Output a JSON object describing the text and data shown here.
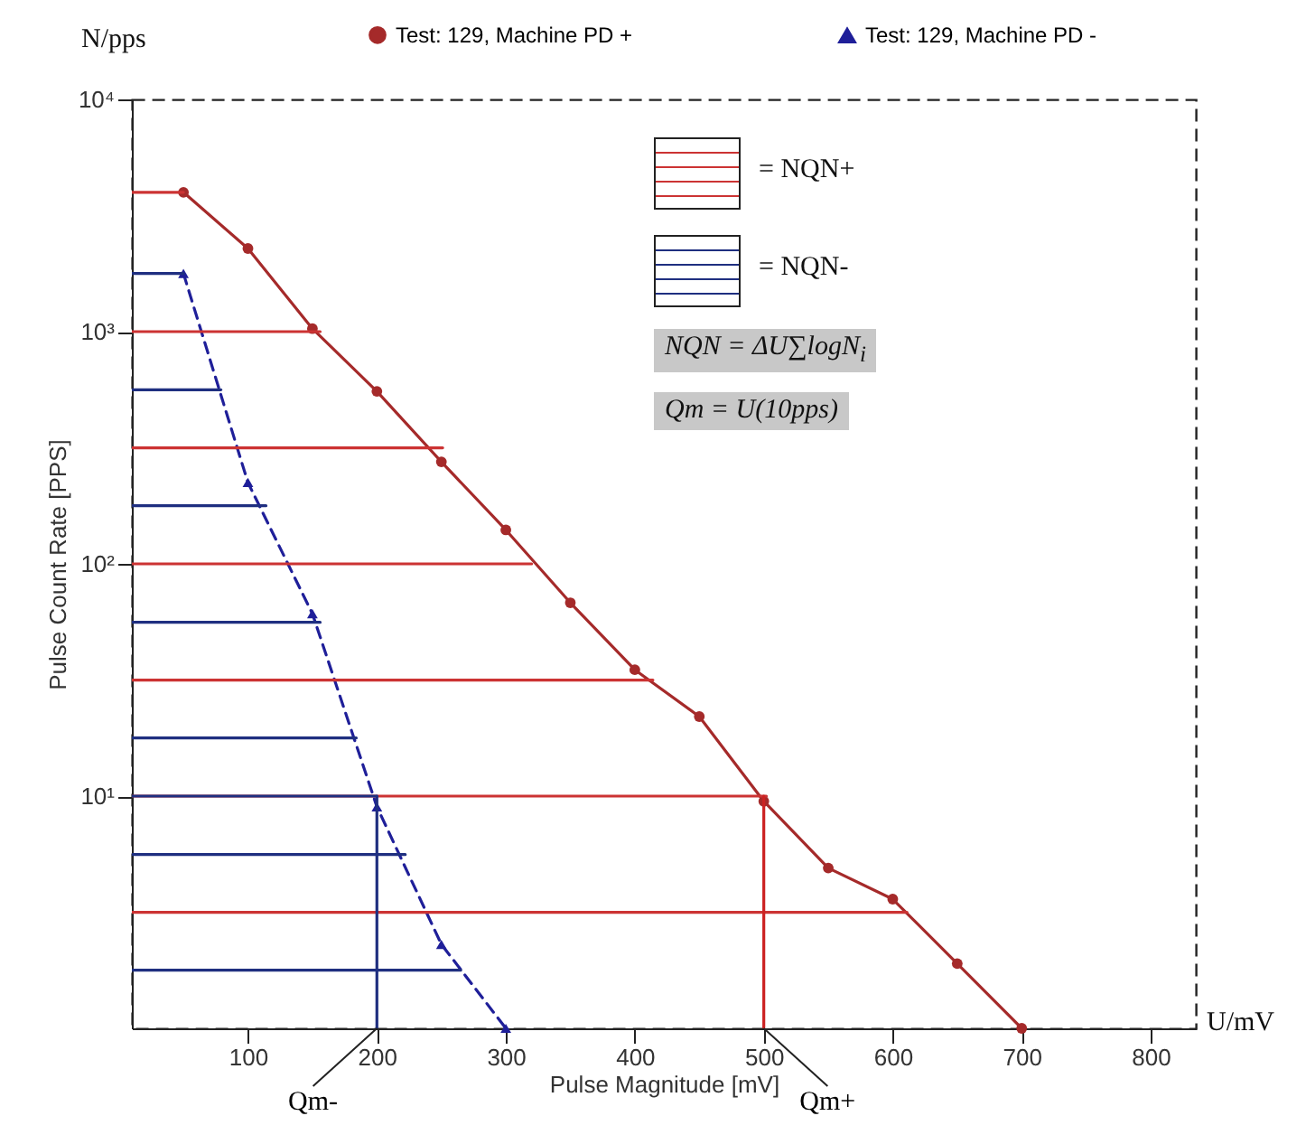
{
  "chart_data": {
    "type": "line",
    "xlabel": "Pulse Magnitude [mV]",
    "ylabel": "Pulse Count Rate [PPS]",
    "xlim": [
      10,
      835
    ],
    "ylim": [
      1,
      10000
    ],
    "xticks": [
      100,
      200,
      300,
      400,
      500,
      600,
      700,
      800
    ],
    "yticks": [
      {
        "value": 10,
        "label": "10¹"
      },
      {
        "value": 100,
        "label": "10²"
      },
      {
        "value": 1000,
        "label": "10³"
      },
      {
        "value": 10000,
        "label": "10⁴"
      }
    ],
    "log": "y",
    "legend": "top",
    "annotations": [
      "N/pps",
      "U/mV",
      "= NQN+",
      "= NQN-",
      "NQN = ΔU∑logN$_{i}$",
      "Qm = U(10pps)",
      {
        "text": "Qm-",
        "x": 200,
        "y": 1
      },
      {
        "text": "Qm+",
        "x": 500,
        "y": 1
      }
    ],
    "series": [
      {
        "name": "Test: 129, Machine PD +",
        "color": "#a52a2a",
        "marker": "circle",
        "line_style": "solid",
        "x": [
          50,
          100,
          150,
          200,
          250,
          300,
          350,
          400,
          450,
          500,
          550,
          600,
          650,
          700
        ],
        "values": [
          3980,
          2280,
          1030,
          553,
          275,
          140,
          68,
          35,
          22,
          9.5,
          4.9,
          3.6,
          1.9,
          1
        ]
      },
      {
        "name": "Test: 129, Machine PD -",
        "color": "#1f1f99",
        "marker": "triangle",
        "line_style": "dashed",
        "x": [
          50,
          100,
          150,
          200,
          250,
          300
        ],
        "values": [
          1780,
          224,
          61,
          9,
          2.3,
          1
        ]
      },
      {
        "color": "#cc3333",
        "marker": "none",
        "line_style": "solid",
        "x": [
          10,
          50
        ],
        "values": [
          3980,
          3980
        ]
      },
      {
        "color": "#cc3333",
        "marker": "none",
        "line_style": "solid",
        "x": [
          10,
          156
        ],
        "values": [
          1000,
          1000
        ]
      },
      {
        "color": "#cc3333",
        "marker": "none",
        "line_style": "solid",
        "x": [
          10,
          251
        ],
        "values": [
          316,
          316
        ]
      },
      {
        "color": "#cc3333",
        "marker": "none",
        "line_style": "solid",
        "x": [
          10,
          320
        ],
        "values": [
          100,
          100
        ]
      },
      {
        "color": "#cc3333",
        "marker": "none",
        "line_style": "solid",
        "x": [
          10,
          414
        ],
        "values": [
          31.6,
          31.6
        ]
      },
      {
        "color": "#cc3333",
        "marker": "none",
        "line_style": "solid",
        "x": [
          10,
          502
        ],
        "values": [
          10,
          10
        ]
      },
      {
        "color": "#cc3333",
        "marker": "none",
        "line_style": "solid",
        "x": [
          10,
          611
        ],
        "values": [
          3.16,
          3.16
        ]
      },
      {
        "color": "#cc2222",
        "marker": "none",
        "line_style": "solid",
        "x": [
          500,
          500
        ],
        "values": [
          1,
          10
        ]
      },
      {
        "color": "#1f2f80",
        "marker": "none",
        "line_style": "solid",
        "x": [
          10,
          50
        ],
        "values": [
          1780,
          1780
        ]
      },
      {
        "color": "#1f2f80",
        "marker": "none",
        "line_style": "solid",
        "x": [
          10,
          79
        ],
        "values": [
          562,
          562
        ]
      },
      {
        "color": "#1f2f80",
        "marker": "none",
        "line_style": "solid",
        "x": [
          10,
          114
        ],
        "values": [
          178,
          178
        ]
      },
      {
        "color": "#1f2f80",
        "marker": "none",
        "line_style": "solid",
        "x": [
          10,
          156
        ],
        "values": [
          56,
          56
        ]
      },
      {
        "color": "#1f2f80",
        "marker": "none",
        "line_style": "solid",
        "x": [
          10,
          184
        ],
        "values": [
          17.8,
          17.8
        ]
      },
      {
        "color": "#1f2f80",
        "marker": "none",
        "line_style": "solid",
        "x": [
          10,
          200
        ],
        "values": [
          10,
          10
        ]
      },
      {
        "color": "#1f2f80",
        "marker": "none",
        "line_style": "solid",
        "x": [
          10,
          222
        ],
        "values": [
          5.6,
          5.6
        ]
      },
      {
        "color": "#1f2f80",
        "marker": "none",
        "line_style": "solid",
        "x": [
          10,
          265
        ],
        "values": [
          1.78,
          1.78
        ]
      },
      {
        "color": "#1f2f80",
        "marker": "none",
        "line_style": "solid",
        "x": [
          200,
          200
        ],
        "values": [
          1,
          10
        ]
      }
    ]
  }
}
